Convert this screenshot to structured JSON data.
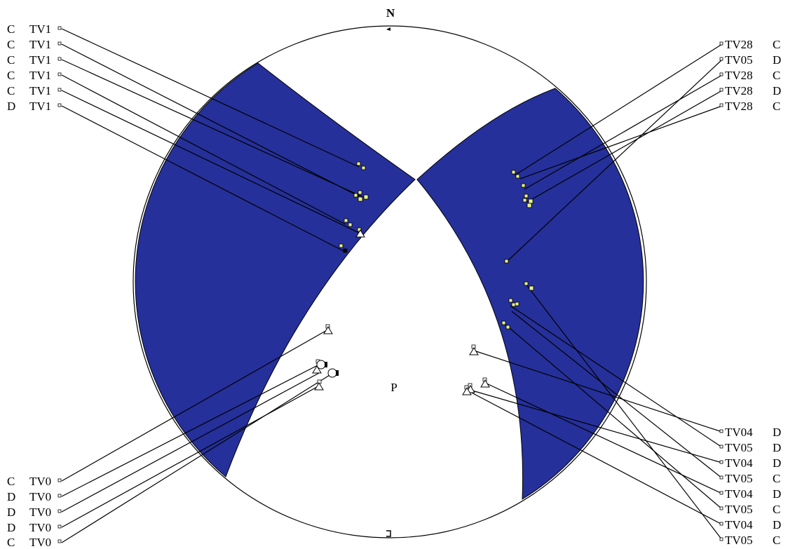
{
  "diagram": {
    "north_label": "N",
    "pole_label": "P",
    "colors": {
      "wedge_fill": "#25309a",
      "outline": "#000000",
      "marker_yellow": "#e8f08a"
    },
    "labels_left_top": [
      {
        "code": "C",
        "id": "TV1"
      },
      {
        "code": "C",
        "id": "TV1"
      },
      {
        "code": "C",
        "id": "TV1"
      },
      {
        "code": "C",
        "id": "TV1"
      },
      {
        "code": "C",
        "id": "TV1"
      },
      {
        "code": "D",
        "id": "TV1"
      }
    ],
    "labels_right_top": [
      {
        "id": "TV28",
        "code": "C"
      },
      {
        "id": "TV05",
        "code": "D"
      },
      {
        "id": "TV28",
        "code": "C"
      },
      {
        "id": "TV28",
        "code": "D"
      },
      {
        "id": "TV28",
        "code": "C"
      }
    ],
    "labels_left_bottom": [
      {
        "code": "C",
        "id": "TV0"
      },
      {
        "code": "D",
        "id": "TV0"
      },
      {
        "code": "D",
        "id": "TV0"
      },
      {
        "code": "D",
        "id": "TV0"
      },
      {
        "code": "C",
        "id": "TV0"
      }
    ],
    "labels_right_bottom": [
      {
        "id": "TV04",
        "code": "D"
      },
      {
        "id": "TV05",
        "code": "D"
      },
      {
        "id": "TV04",
        "code": "D"
      },
      {
        "id": "TV05",
        "code": "C"
      },
      {
        "id": "TV04",
        "code": "D"
      },
      {
        "id": "TV05",
        "code": "C"
      },
      {
        "id": "TV04",
        "code": "D"
      },
      {
        "id": "TV05",
        "code": "C"
      }
    ],
    "icons": {
      "square_marker": "square-marker-icon",
      "triangle_marker": "triangle-marker-icon",
      "circle_marker": "circle-marker-icon"
    }
  }
}
